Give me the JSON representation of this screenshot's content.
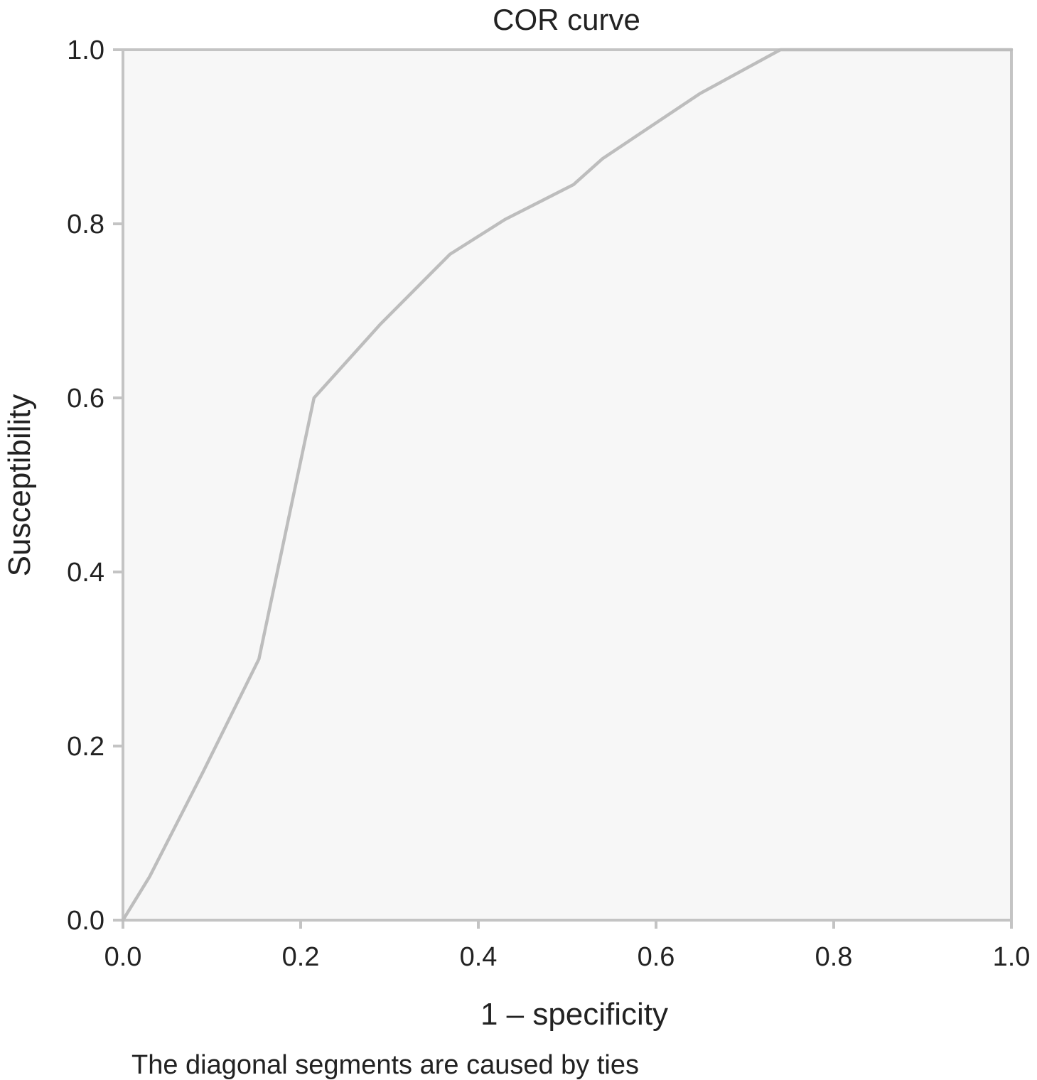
{
  "chart_data": {
    "type": "line",
    "title": "COR curve",
    "xlabel": "1 – specificity",
    "ylabel": "Susceptibility",
    "footnote": "The diagonal segments are caused by ties",
    "xlim": [
      0,
      1
    ],
    "ylim": [
      0,
      1
    ],
    "xticks": [
      "0.0",
      "0.2",
      "0.4",
      "0.6",
      "0.8",
      "1.0"
    ],
    "yticks": [
      "0.0",
      "0.2",
      "0.4",
      "0.6",
      "0.8",
      "1.0"
    ],
    "grid": false,
    "colors": {
      "plot_background": "#f7f7f7",
      "frame": "#c4c4c4",
      "line": "#bdbdbd"
    },
    "series": [
      {
        "x": [
          0.0,
          0.03,
          0.09,
          0.153,
          0.215,
          0.29,
          0.368,
          0.43,
          0.507,
          0.54,
          0.65,
          0.74,
          1.0
        ],
        "y": [
          0.0,
          0.05,
          0.17,
          0.3,
          0.6,
          0.685,
          0.765,
          0.805,
          0.845,
          0.875,
          0.95,
          1.0,
          1.0
        ]
      }
    ]
  }
}
